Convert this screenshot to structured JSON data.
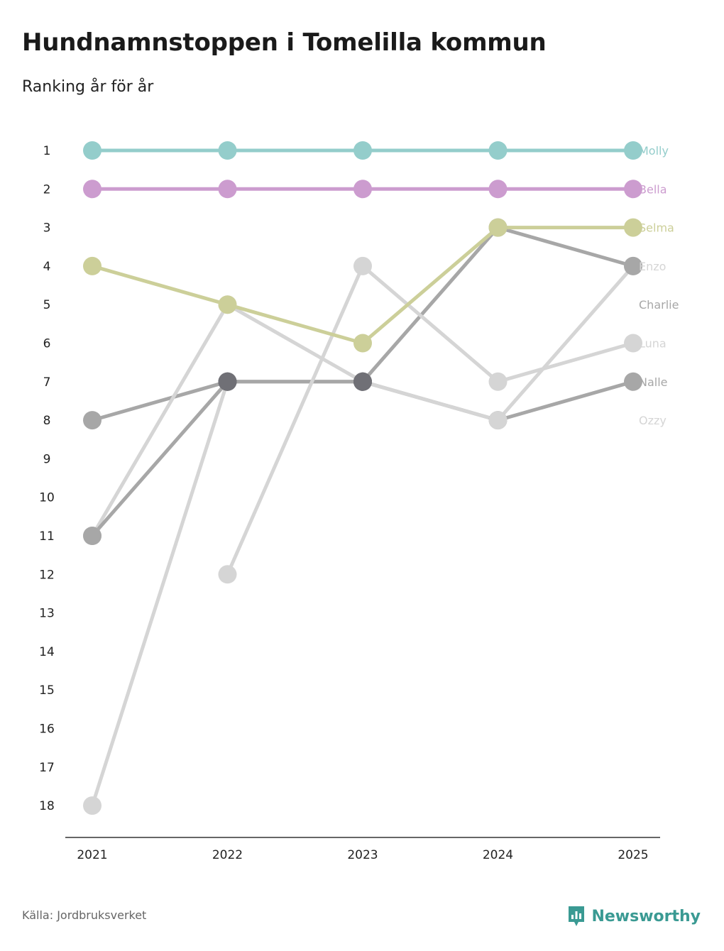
{
  "header": {
    "title": "Hundnamnstoppen i Tomelilla kommun",
    "subtitle": "Ranking år för år"
  },
  "footer": {
    "source": "Källa: Jordbruksverket",
    "brand": "Newsworthy",
    "brand_color": "#3a9a93"
  },
  "chart_data": {
    "type": "line",
    "subtype": "bump",
    "title": "Hundnamnstoppen i Tomelilla kommun",
    "subtitle": "Ranking år för år",
    "xlabel": "",
    "ylabel": "",
    "x": [
      "2021",
      "2022",
      "2023",
      "2024",
      "2025"
    ],
    "y_ticks": [
      "1",
      "2",
      "3",
      "4",
      "5",
      "6",
      "7",
      "8",
      "9",
      "10",
      "11",
      "12",
      "13",
      "14",
      "15",
      "16",
      "17",
      "18"
    ],
    "ylim": [
      1,
      18
    ],
    "y_inverted": true,
    "grid": false,
    "series": [
      {
        "name": "Molly",
        "color": "#94cdcb",
        "values": [
          1,
          1,
          1,
          1,
          1
        ]
      },
      {
        "name": "Bella",
        "color": "#cc9ccf",
        "values": [
          2,
          2,
          2,
          2,
          2
        ]
      },
      {
        "name": "Selma",
        "color": "#cccf99",
        "values": [
          4,
          5,
          6,
          3,
          3
        ]
      },
      {
        "name": "Enzo",
        "color": "#d5d5d5",
        "values": [
          null,
          12,
          4,
          7,
          6
        ]
      },
      {
        "name": "Charlie",
        "color": "#a7a7a7",
        "values": [
          11,
          7,
          7,
          3,
          4
        ]
      },
      {
        "name": "Luna",
        "color": "#d5d5d5",
        "values": [
          11,
          5,
          7,
          8,
          4
        ]
      },
      {
        "name": "Nalle",
        "color": "#a7a7a7",
        "values": [
          8,
          7,
          7,
          8,
          7
        ]
      },
      {
        "name": "Ozzy",
        "color": "#d5d5d5",
        "values": [
          18,
          7,
          null,
          null,
          null
        ]
      }
    ],
    "overlap_color": "#707076"
  }
}
